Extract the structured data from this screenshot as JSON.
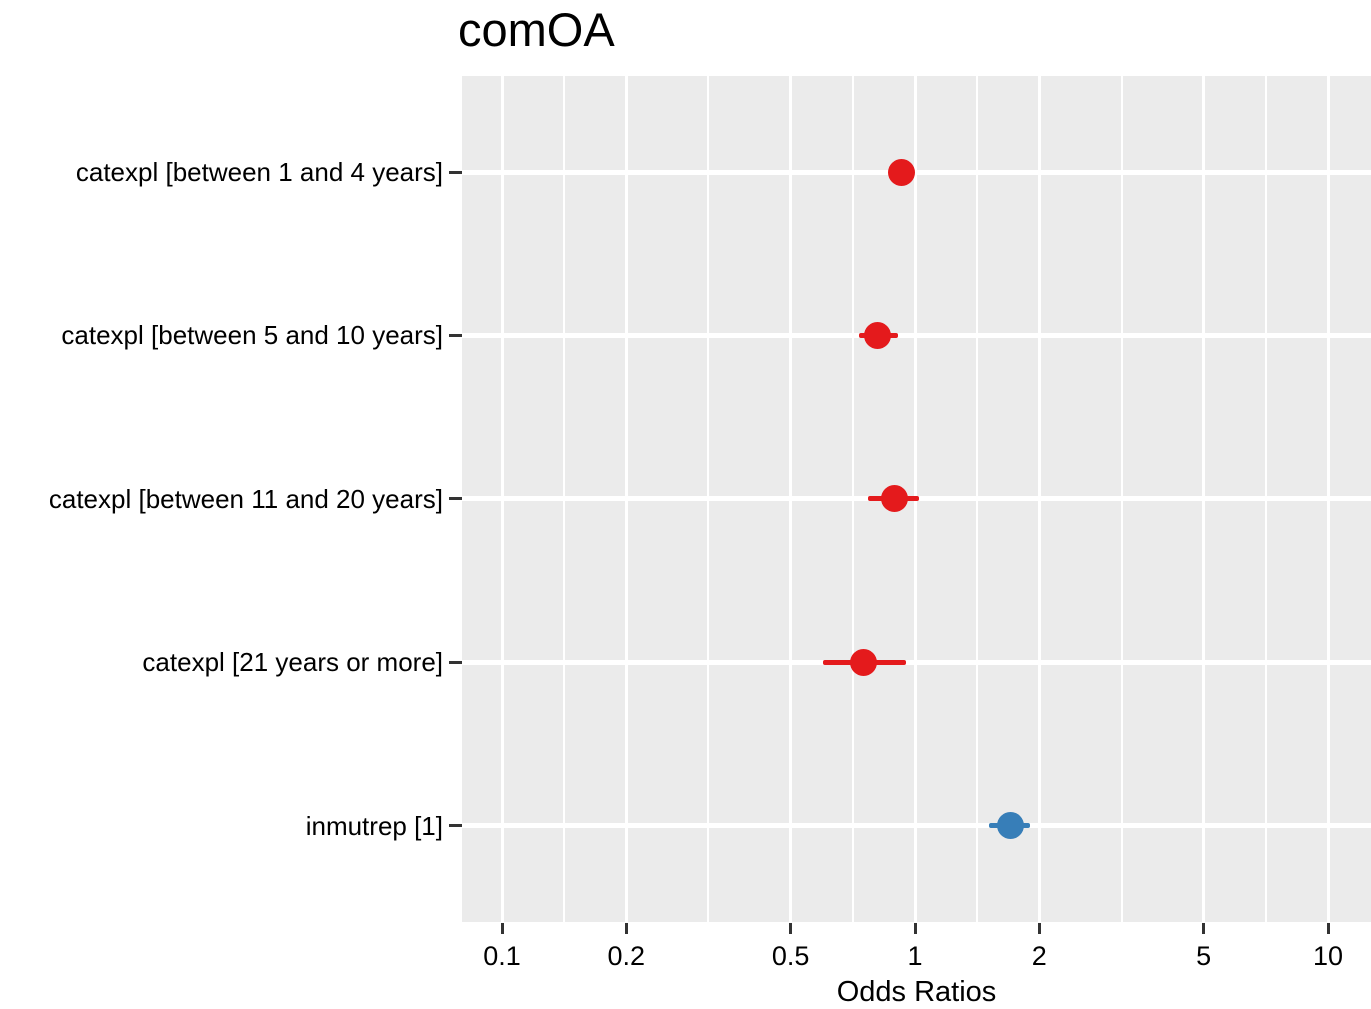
{
  "chart_data": {
    "type": "scatter",
    "subtype": "forest-plot-odds-ratios",
    "title": "comOA",
    "xlabel": "Odds Ratios",
    "x_scale": "log10",
    "xlim": [
      0.08,
      12.7
    ],
    "x_ticks": [
      0.1,
      0.2,
      0.5,
      1,
      2,
      5,
      10
    ],
    "x_tick_labels": [
      "0.1",
      "0.2",
      "0.5",
      "1",
      "2",
      "5",
      "10"
    ],
    "x_minor_ticks": [
      0.1414,
      0.3162,
      0.7071,
      1.4142,
      3.1623,
      7.0711
    ],
    "grid": "white major and minor gridlines on grey panel",
    "legend_position": "none",
    "terms": [
      {
        "label": "catexpl [between 1 and 4 years]",
        "or": 0.93,
        "ci_low": 0.87,
        "ci_high": 0.99,
        "color": "#e41a1c"
      },
      {
        "label": "catexpl [between 5 and 10 years]",
        "or": 0.81,
        "ci_low": 0.73,
        "ci_high": 0.91,
        "color": "#e41a1c"
      },
      {
        "label": "catexpl [between 11 and 20 years]",
        "or": 0.89,
        "ci_low": 0.77,
        "ci_high": 1.02,
        "color": "#e41a1c"
      },
      {
        "label": "catexpl [21 years or more]",
        "or": 0.75,
        "ci_low": 0.6,
        "ci_high": 0.95,
        "color": "#e41a1c"
      },
      {
        "label": "inmutrep [1]",
        "or": 1.7,
        "ci_low": 1.51,
        "ci_high": 1.9,
        "color": "#377eb8"
      }
    ]
  },
  "colors": {
    "negative_or": "#e41a1c",
    "positive_or": "#377eb8",
    "panel_background": "#ebebeb",
    "gridline": "#ffffff",
    "tick_mark": "#333333",
    "text": "#000000"
  }
}
